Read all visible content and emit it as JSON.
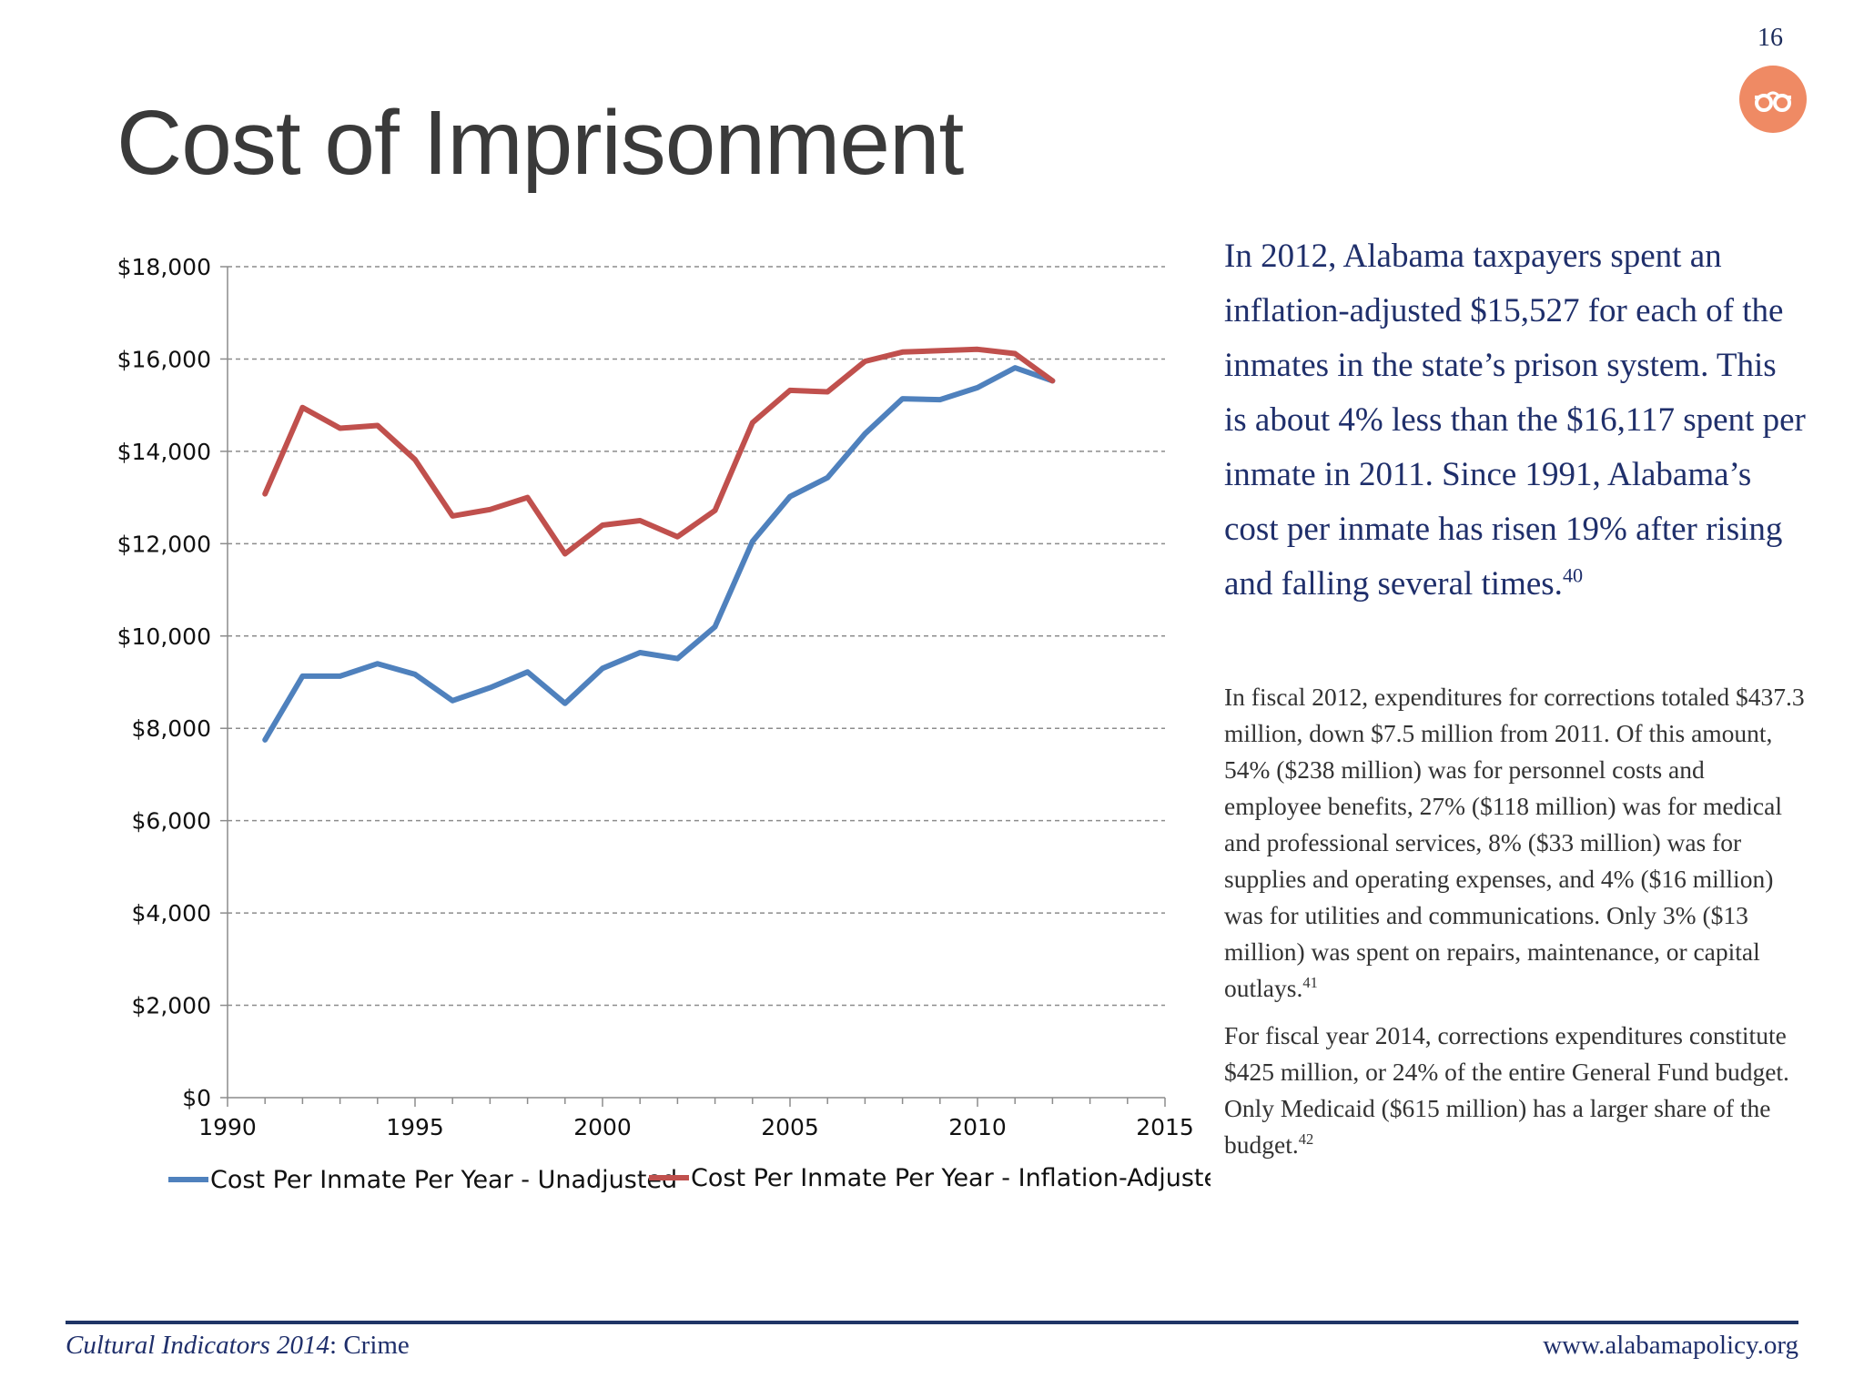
{
  "page": {
    "number": "16",
    "title": "Cost of Imprisonment"
  },
  "text": {
    "lead": "In 2012, Alabama taxpayers spent an inflation-adjusted $15,527 for each of the inmates in the state’s prison system. This is about 4% less than the $16,117 spent per inmate in 2011.  Since 1991, Alabama’s cost per inmate has risen 19% after rising and falling several times.",
    "lead_ref": "40",
    "para1": "In fiscal 2012, expenditures for corrections totaled $437.3 million, down $7.5 million from 2011. Of this amount, 54% ($238 million) was for personnel costs and employee benefits, 27% ($118 million) was for medical and professional services, 8% ($33 million) was for supplies and operating expenses, and 4% ($16 million) was for utilities and communications.  Only 3% ($13 million) was spent on repairs, maintenance, or capital outlays.",
    "para1_ref": "41",
    "para2": "For fiscal year 2014, corrections expenditures constitute $425 million, or 24% of the entire General Fund budget.  Only Medicaid ($615 million) has a larger share of the budget.",
    "para2_ref": "42"
  },
  "footer": {
    "left_italic": "Cultural Indicators 2014",
    "left_rest": ": Crime",
    "right": "www.alabamapolicy.org",
    "rule_color": "#1f3566"
  },
  "logo": {
    "icon": "handcuffs-icon",
    "color": "#ef8a64"
  },
  "chart_data": {
    "type": "line",
    "title": "",
    "xlabel": "",
    "ylabel": "",
    "xlim": [
      1990,
      2015
    ],
    "ylim": [
      0,
      18000
    ],
    "x_ticks": [
      1990,
      1995,
      2000,
      2005,
      2010,
      2015
    ],
    "x_tick_labels": [
      "1990",
      "1995",
      "2000",
      "2005",
      "2010",
      "2015"
    ],
    "y_ticks": [
      0,
      2000,
      4000,
      6000,
      8000,
      10000,
      12000,
      14000,
      16000,
      18000
    ],
    "y_tick_labels": [
      "$0",
      "$2,000",
      "$4,000",
      "$6,000",
      "$8,000",
      "$10,000",
      "$12,000",
      "$14,000",
      "$16,000",
      "$18,000"
    ],
    "grid": "horizontal dashed",
    "legend_position": "bottom",
    "x": [
      1991,
      1992,
      1993,
      1994,
      1995,
      1996,
      1997,
      1998,
      1999,
      2000,
      2001,
      2002,
      2003,
      2004,
      2005,
      2006,
      2007,
      2008,
      2009,
      2010,
      2011,
      2012
    ],
    "series": [
      {
        "name": "Cost Per Inmate Per Year - Unadjusted",
        "color": "#4f81bd",
        "values": [
          7750,
          9130,
          9130,
          9400,
          9170,
          8600,
          8880,
          9220,
          8540,
          9300,
          9640,
          9510,
          10200,
          12050,
          13020,
          13430,
          14380,
          15140,
          15120,
          15380,
          15810,
          15527
        ]
      },
      {
        "name": "Cost Per Inmate Per Year - Inflation-Adjusted",
        "color": "#c0504d",
        "values": [
          13080,
          14950,
          14500,
          14560,
          13820,
          12600,
          12740,
          13000,
          11780,
          12400,
          12500,
          12150,
          12720,
          14620,
          15320,
          15290,
          15950,
          16150,
          16180,
          16210,
          16117,
          15527
        ]
      }
    ]
  }
}
